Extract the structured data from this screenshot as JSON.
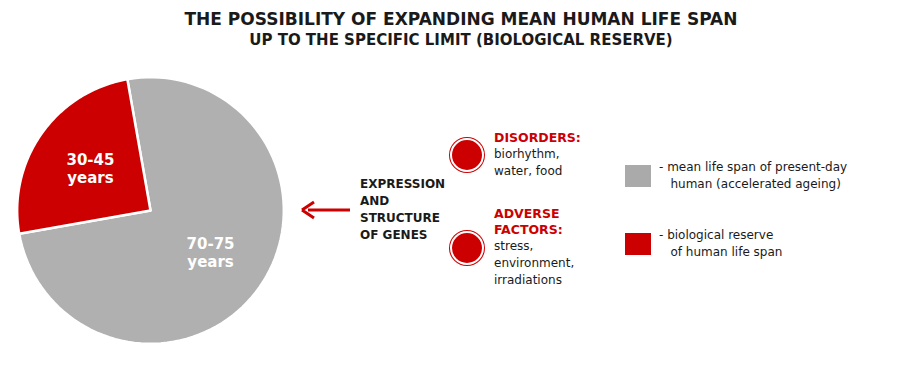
{
  "chart_data": {
    "type": "pie",
    "title": "THE POSSIBILITY OF EXPANDING MEAN HUMAN LIFE SPAN",
    "subtitle": "UP TO THE SPECIFIC LIMIT (BIOLOGICAL RESERVE)",
    "title_color": "#1a1a1a",
    "categories": [
      "70-75\nyears",
      "30-45\nyears"
    ],
    "values": [
      75,
      25
    ],
    "colors": [
      "#b0b0b0",
      "#cc0000"
    ],
    "legend_entries": [
      {
        "label": "- mean life span of present-day\n   human (accelerated ageing)",
        "color": "#aaaaaa"
      },
      {
        "label": "- biological reserve\n   of human life span",
        "color": "#cc0000"
      }
    ],
    "annotations": [
      {
        "text": "EXPRESSION\nAND\nSTRUCTURE\nOF GENES",
        "color": "#1a1a1a",
        "arrow_color": "#cc0000"
      },
      {
        "title": "DISORDERS:",
        "title_color": "#cc0000",
        "text": "biorhythm,\nwater, food",
        "color": "#1a1a1a"
      },
      {
        "title": "ADVERSE\nFACTORS:",
        "title_color": "#cc0000",
        "text": "stress,\nenvironment,\nirradiations",
        "color": "#1a1a1a"
      }
    ]
  }
}
